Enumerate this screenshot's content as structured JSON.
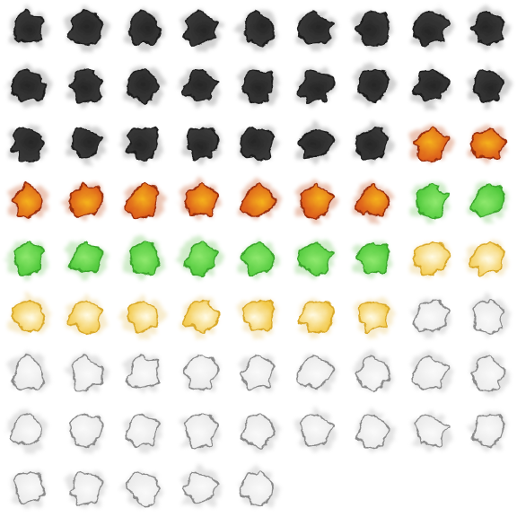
{
  "sheet": {
    "columns": 9,
    "rows": 9,
    "frame_count": 77
  },
  "palettes": {
    "smoke": {
      "fill_outer": "#3a3a3a",
      "fill_inner": "#262626",
      "stroke": "#1c1c1c",
      "halo": "#7a7a7a"
    },
    "fire": {
      "fill_outer": "#d9531a",
      "fill_inner": "#f5b21e",
      "stroke": "#9a2e0c",
      "halo": "#c85a2a"
    },
    "toxic": {
      "fill_outer": "#4ec83a",
      "fill_inner": "#8fe86e",
      "stroke": "#3aa52c",
      "halo": "#7ac86a"
    },
    "glow": {
      "fill_outer": "#f2c94a",
      "fill_inner": "#fffbe6",
      "stroke": "#d9a92a",
      "halo": "#e8c870"
    },
    "cloud": {
      "fill_outer": "#e9e9e9",
      "fill_inner": "#fafafa",
      "stroke": "#8a8a8a",
      "halo": "#b0b0b0"
    }
  },
  "frames": [
    {
      "palette": "smoke"
    },
    {
      "palette": "smoke"
    },
    {
      "palette": "smoke"
    },
    {
      "palette": "smoke"
    },
    {
      "palette": "smoke"
    },
    {
      "palette": "smoke"
    },
    {
      "palette": "smoke"
    },
    {
      "palette": "smoke"
    },
    {
      "palette": "smoke"
    },
    {
      "palette": "smoke"
    },
    {
      "palette": "smoke"
    },
    {
      "palette": "smoke"
    },
    {
      "palette": "smoke"
    },
    {
      "palette": "smoke"
    },
    {
      "palette": "smoke"
    },
    {
      "palette": "smoke"
    },
    {
      "palette": "smoke"
    },
    {
      "palette": "smoke"
    },
    {
      "palette": "smoke"
    },
    {
      "palette": "smoke"
    },
    {
      "palette": "smoke"
    },
    {
      "palette": "smoke"
    },
    {
      "palette": "smoke"
    },
    {
      "palette": "smoke"
    },
    {
      "palette": "smoke"
    },
    {
      "palette": "fire"
    },
    {
      "palette": "fire"
    },
    {
      "palette": "fire"
    },
    {
      "palette": "fire"
    },
    {
      "palette": "fire"
    },
    {
      "palette": "fire"
    },
    {
      "palette": "fire"
    },
    {
      "palette": "fire"
    },
    {
      "palette": "fire"
    },
    {
      "palette": "toxic"
    },
    {
      "palette": "toxic"
    },
    {
      "palette": "toxic"
    },
    {
      "palette": "toxic"
    },
    {
      "palette": "toxic"
    },
    {
      "palette": "toxic"
    },
    {
      "palette": "toxic"
    },
    {
      "palette": "toxic"
    },
    {
      "palette": "toxic"
    },
    {
      "palette": "glow"
    },
    {
      "palette": "glow"
    },
    {
      "palette": "glow"
    },
    {
      "palette": "glow"
    },
    {
      "palette": "glow"
    },
    {
      "palette": "glow"
    },
    {
      "palette": "glow"
    },
    {
      "palette": "glow"
    },
    {
      "palette": "glow"
    },
    {
      "palette": "cloud"
    },
    {
      "palette": "cloud"
    },
    {
      "palette": "cloud"
    },
    {
      "palette": "cloud"
    },
    {
      "palette": "cloud"
    },
    {
      "palette": "cloud"
    },
    {
      "palette": "cloud"
    },
    {
      "palette": "cloud"
    },
    {
      "palette": "cloud"
    },
    {
      "palette": "cloud"
    },
    {
      "palette": "cloud"
    },
    {
      "palette": "cloud"
    },
    {
      "palette": "cloud"
    },
    {
      "palette": "cloud"
    },
    {
      "palette": "cloud"
    },
    {
      "palette": "cloud"
    },
    {
      "palette": "cloud"
    },
    {
      "palette": "cloud"
    },
    {
      "palette": "cloud"
    },
    {
      "palette": "cloud"
    },
    {
      "palette": "cloud"
    },
    {
      "palette": "cloud"
    },
    {
      "palette": "cloud"
    },
    {
      "palette": "cloud"
    },
    {
      "palette": "cloud"
    }
  ]
}
